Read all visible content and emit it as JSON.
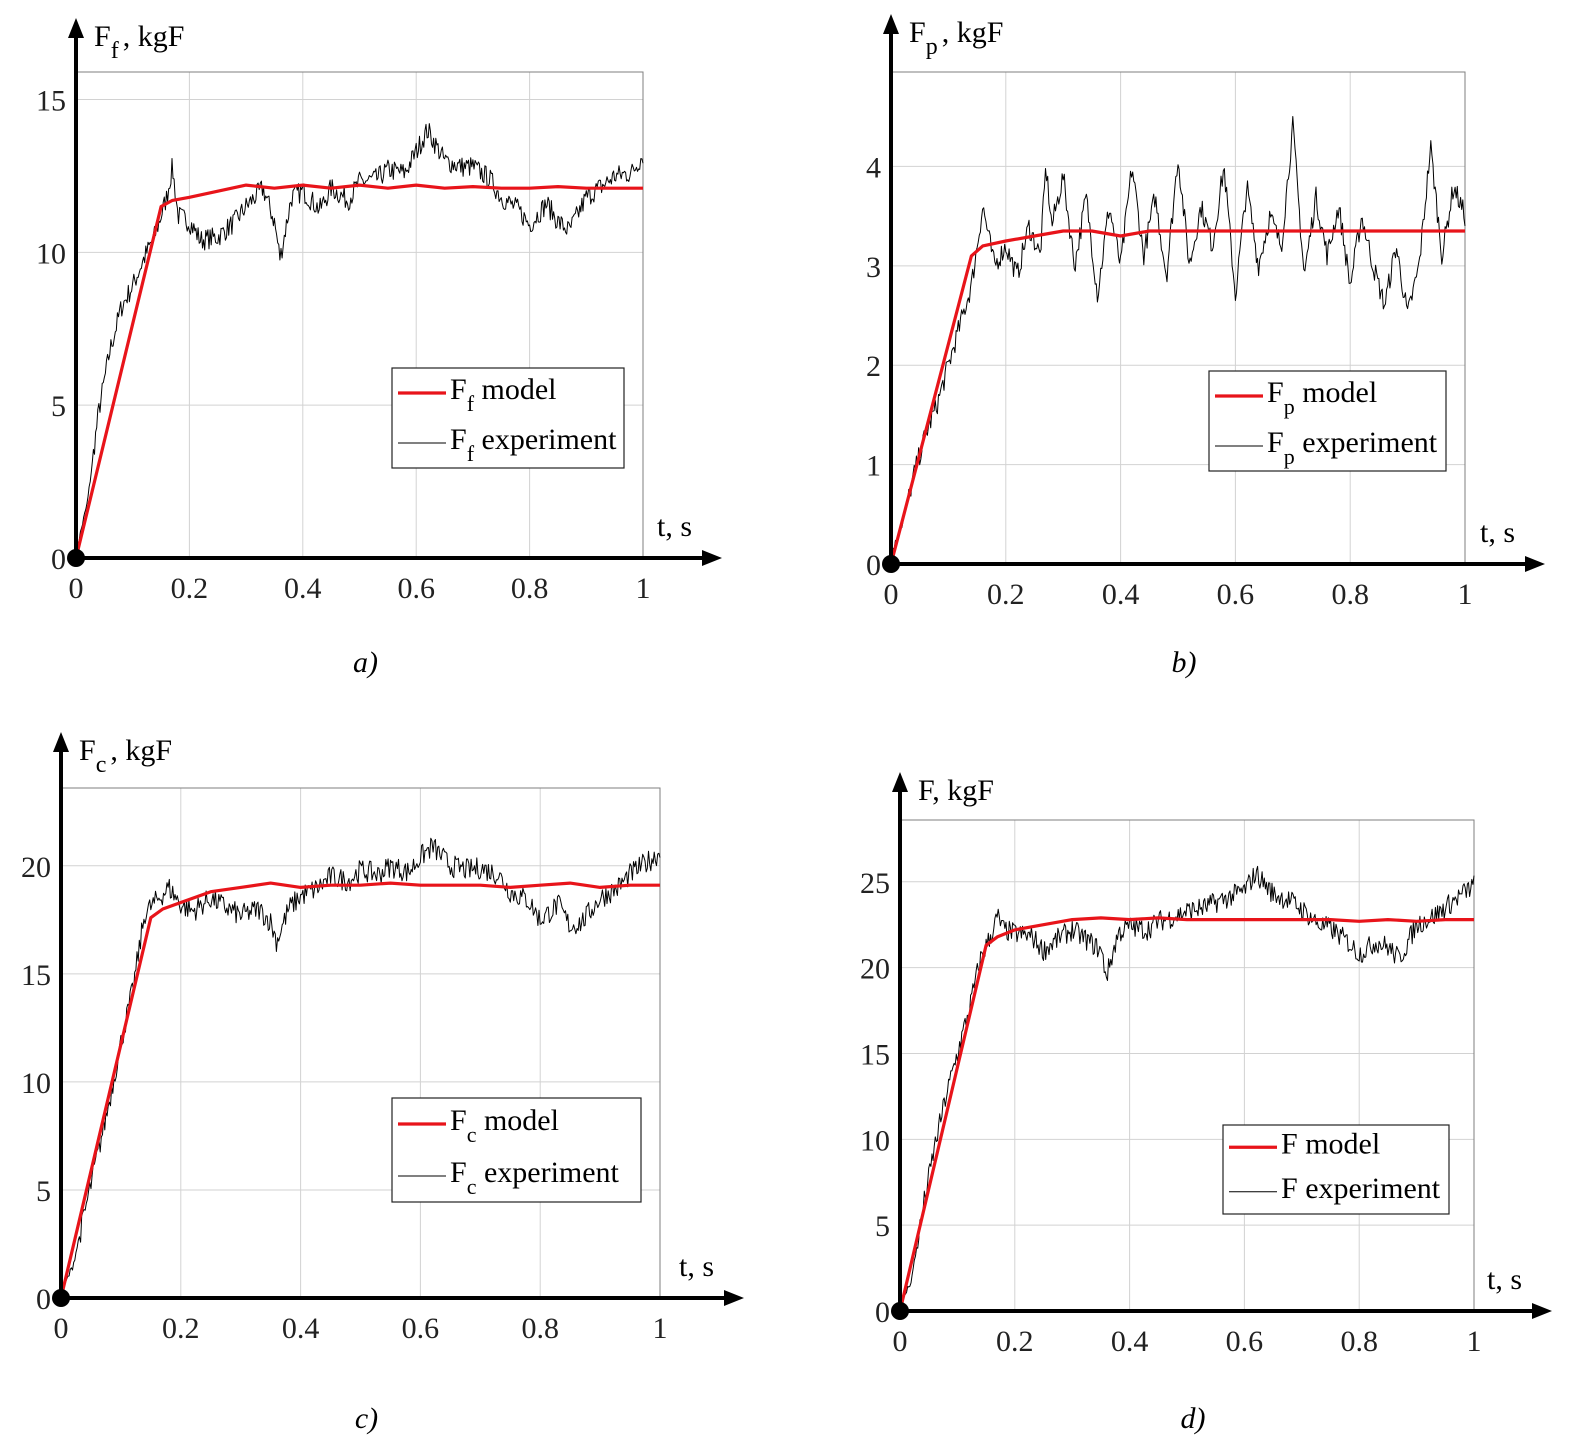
{
  "colors": {
    "model": "#e8141a",
    "experiment": "#000000",
    "grid": "#d2d2d2",
    "axis": "#000000"
  },
  "chart_data": [
    {
      "id": "a",
      "type": "line",
      "caption": "a)",
      "y_label_main": "F",
      "y_label_sub": "f",
      "y_label_rest": ", kgF",
      "x_label": "t, s",
      "x_ticks": [
        "0",
        "0.2",
        "0.4",
        "0.6",
        "0.8",
        "1"
      ],
      "y_ticks": [
        "0",
        "5",
        "10",
        "15"
      ],
      "xlim": [
        0,
        1
      ],
      "ylim": [
        0,
        15.9
      ],
      "grid": true,
      "legend_position": "lower-right",
      "series": [
        {
          "name_main": "F",
          "name_sub": "f",
          "name_rest": " model",
          "role": "model",
          "x": [
            0,
            0.15,
            0.17,
            0.2,
            0.25,
            0.3,
            0.35,
            0.4,
            0.45,
            0.5,
            0.55,
            0.6,
            0.65,
            0.7,
            0.75,
            0.8,
            0.85,
            0.9,
            0.95,
            1
          ],
          "y": [
            0,
            11.5,
            11.7,
            11.8,
            12.0,
            12.2,
            12.1,
            12.2,
            12.1,
            12.2,
            12.1,
            12.2,
            12.1,
            12.15,
            12.1,
            12.1,
            12.15,
            12.1,
            12.1,
            12.1
          ]
        },
        {
          "name_main": "F",
          "name_sub": "f",
          "name_rest": " experiment",
          "role": "experiment",
          "x": [
            0,
            0.02,
            0.04,
            0.06,
            0.08,
            0.1,
            0.12,
            0.14,
            0.16,
            0.17,
            0.18,
            0.2,
            0.22,
            0.25,
            0.28,
            0.3,
            0.33,
            0.35,
            0.36,
            0.38,
            0.4,
            0.43,
            0.45,
            0.48,
            0.5,
            0.53,
            0.55,
            0.58,
            0.6,
            0.62,
            0.65,
            0.68,
            0.7,
            0.73,
            0.75,
            0.78,
            0.8,
            0.83,
            0.85,
            0.87,
            0.9,
            0.93,
            0.95,
            0.98,
            1
          ],
          "y": [
            0.2,
            1.8,
            4.8,
            6.8,
            8.2,
            8.9,
            9.8,
            10.6,
            11.8,
            12.8,
            11.2,
            11.0,
            10.4,
            10.5,
            11.0,
            11.5,
            12.1,
            11.0,
            9.8,
            11.8,
            12.0,
            11.4,
            12.1,
            11.7,
            12.3,
            12.4,
            12.7,
            12.6,
            13.3,
            14.0,
            13.0,
            12.8,
            12.8,
            12.4,
            11.8,
            11.4,
            10.9,
            11.6,
            11.0,
            10.7,
            11.8,
            12.2,
            12.5,
            12.6,
            13.2
          ]
        }
      ]
    },
    {
      "id": "b",
      "type": "line",
      "caption": "b)",
      "y_label_main": "F",
      "y_label_sub": "p",
      "y_label_rest": ", kgF",
      "x_label": "t, s",
      "x_ticks": [
        "0",
        "0.2",
        "0.4",
        "0.6",
        "0.8",
        "1"
      ],
      "y_ticks": [
        "0",
        "1",
        "2",
        "3",
        "4"
      ],
      "xlim": [
        0,
        1
      ],
      "ylim": [
        0,
        4.95
      ],
      "grid": true,
      "legend_position": "lower-right",
      "series": [
        {
          "name_main": "F",
          "name_sub": "p",
          "name_rest": " model",
          "role": "model",
          "x": [
            0,
            0.14,
            0.16,
            0.2,
            0.25,
            0.3,
            0.35,
            0.4,
            0.45,
            0.5,
            0.55,
            0.6,
            0.65,
            0.7,
            0.75,
            0.8,
            0.85,
            0.9,
            0.95,
            1
          ],
          "y": [
            0,
            3.1,
            3.2,
            3.25,
            3.3,
            3.35,
            3.35,
            3.3,
            3.35,
            3.35,
            3.35,
            3.35,
            3.35,
            3.35,
            3.35,
            3.35,
            3.35,
            3.35,
            3.35,
            3.35
          ]
        },
        {
          "name_main": "F",
          "name_sub": "p",
          "name_rest": " experiment",
          "role": "experiment",
          "x": [
            0,
            0.02,
            0.04,
            0.06,
            0.08,
            0.1,
            0.12,
            0.14,
            0.15,
            0.16,
            0.18,
            0.2,
            0.22,
            0.24,
            0.26,
            0.27,
            0.28,
            0.3,
            0.32,
            0.34,
            0.36,
            0.38,
            0.4,
            0.42,
            0.44,
            0.46,
            0.48,
            0.5,
            0.52,
            0.54,
            0.56,
            0.58,
            0.6,
            0.62,
            0.64,
            0.66,
            0.68,
            0.7,
            0.72,
            0.74,
            0.76,
            0.78,
            0.8,
            0.82,
            0.84,
            0.86,
            0.88,
            0.9,
            0.92,
            0.94,
            0.96,
            0.98,
            1
          ],
          "y": [
            0.1,
            0.4,
            0.9,
            1.3,
            1.6,
            2.0,
            2.4,
            2.8,
            3.2,
            3.6,
            3.0,
            3.2,
            2.9,
            3.4,
            3.1,
            4.0,
            3.4,
            3.9,
            3.0,
            3.7,
            2.7,
            3.6,
            3.0,
            4.0,
            3.1,
            3.7,
            2.9,
            4.1,
            3.0,
            3.6,
            3.2,
            4.0,
            2.7,
            3.8,
            3.0,
            3.5,
            3.2,
            4.4,
            2.9,
            3.7,
            3.1,
            3.6,
            2.8,
            3.5,
            3.0,
            2.6,
            3.2,
            2.5,
            3.0,
            4.2,
            3.1,
            3.8,
            3.5
          ]
        }
      ]
    },
    {
      "id": "c",
      "type": "line",
      "caption": "c)",
      "y_label_main": "F",
      "y_label_sub": "c",
      "y_label_rest": ", kgF",
      "x_label": "t, s",
      "x_ticks": [
        "0",
        "0.2",
        "0.4",
        "0.6",
        "0.8",
        "1"
      ],
      "y_ticks": [
        "0",
        "5",
        "10",
        "15",
        "20"
      ],
      "xlim": [
        0,
        1
      ],
      "ylim": [
        0,
        23.6
      ],
      "grid": true,
      "legend_position": "lower-right",
      "series": [
        {
          "name_main": "F",
          "name_sub": "c",
          "name_rest": " model",
          "role": "model",
          "x": [
            0,
            0.15,
            0.17,
            0.2,
            0.25,
            0.3,
            0.35,
            0.4,
            0.45,
            0.5,
            0.55,
            0.6,
            0.65,
            0.7,
            0.75,
            0.8,
            0.85,
            0.9,
            0.95,
            1
          ],
          "y": [
            0,
            17.6,
            18.0,
            18.3,
            18.8,
            19.0,
            19.2,
            19.0,
            19.1,
            19.1,
            19.2,
            19.1,
            19.1,
            19.1,
            19.0,
            19.1,
            19.2,
            19.0,
            19.1,
            19.1
          ]
        },
        {
          "name_main": "F",
          "name_sub": "c",
          "name_rest": " experiment",
          "role": "experiment",
          "x": [
            0,
            0.02,
            0.04,
            0.06,
            0.08,
            0.1,
            0.12,
            0.14,
            0.16,
            0.18,
            0.2,
            0.22,
            0.25,
            0.28,
            0.3,
            0.33,
            0.35,
            0.36,
            0.38,
            0.4,
            0.43,
            0.45,
            0.48,
            0.5,
            0.53,
            0.55,
            0.58,
            0.6,
            0.62,
            0.65,
            0.68,
            0.7,
            0.73,
            0.75,
            0.78,
            0.8,
            0.83,
            0.85,
            0.87,
            0.9,
            0.93,
            0.95,
            0.98,
            1
          ],
          "y": [
            0.2,
            1.5,
            4.0,
            6.5,
            9.0,
            11.8,
            14.3,
            17.8,
            18.4,
            19.0,
            18.2,
            17.9,
            18.5,
            18.0,
            17.7,
            18.0,
            17.4,
            16.5,
            18.0,
            18.6,
            19.0,
            19.5,
            19.3,
            19.8,
            19.6,
            20.0,
            19.7,
            20.4,
            20.9,
            20.0,
            19.8,
            19.9,
            19.6,
            18.8,
            18.4,
            17.5,
            18.2,
            17.2,
            17.4,
            18.5,
            19.0,
            19.6,
            20.2,
            20.6
          ]
        }
      ]
    },
    {
      "id": "d",
      "type": "line",
      "caption": "d)",
      "y_label_main": "F",
      "y_label_sub": "",
      "y_label_rest": ", kgF",
      "x_label": "t, s",
      "x_ticks": [
        "0",
        "0.2",
        "0.4",
        "0.6",
        "0.8",
        "1"
      ],
      "y_ticks": [
        "0",
        "5",
        "10",
        "15",
        "20",
        "25"
      ],
      "xlim": [
        0,
        1
      ],
      "ylim": [
        0,
        28.6
      ],
      "grid": true,
      "legend_position": "lower-right",
      "series": [
        {
          "name_main": "F",
          "name_sub": "",
          "name_rest": " model",
          "role": "model",
          "x": [
            0,
            0.15,
            0.17,
            0.2,
            0.25,
            0.3,
            0.35,
            0.4,
            0.45,
            0.5,
            0.55,
            0.6,
            0.65,
            0.7,
            0.75,
            0.8,
            0.85,
            0.9,
            0.95,
            1
          ],
          "y": [
            0,
            21.3,
            21.8,
            22.2,
            22.5,
            22.8,
            22.9,
            22.8,
            22.9,
            22.8,
            22.8,
            22.8,
            22.8,
            22.8,
            22.8,
            22.7,
            22.8,
            22.7,
            22.8,
            22.8
          ]
        },
        {
          "name_main": "F",
          "name_sub": "",
          "name_rest": " experiment",
          "role": "experiment",
          "x": [
            0,
            0.02,
            0.04,
            0.06,
            0.08,
            0.1,
            0.12,
            0.14,
            0.16,
            0.17,
            0.18,
            0.2,
            0.23,
            0.25,
            0.28,
            0.3,
            0.33,
            0.35,
            0.36,
            0.38,
            0.4,
            0.43,
            0.45,
            0.48,
            0.5,
            0.53,
            0.55,
            0.58,
            0.6,
            0.62,
            0.65,
            0.68,
            0.7,
            0.73,
            0.75,
            0.78,
            0.8,
            0.83,
            0.85,
            0.87,
            0.9,
            0.93,
            0.95,
            0.98,
            1
          ],
          "y": [
            0.3,
            1.8,
            6.0,
            9.5,
            12.5,
            15.0,
            17.5,
            20.5,
            22.0,
            23.0,
            22.2,
            22.0,
            21.8,
            21.0,
            21.8,
            22.2,
            21.5,
            21.0,
            19.5,
            22.0,
            22.4,
            22.2,
            22.7,
            23.0,
            23.3,
            23.5,
            23.8,
            24.2,
            24.5,
            25.5,
            24.3,
            23.9,
            23.4,
            22.5,
            22.3,
            21.5,
            20.8,
            21.5,
            21.2,
            20.5,
            22.5,
            23.0,
            23.5,
            24.3,
            24.8
          ]
        }
      ]
    }
  ]
}
